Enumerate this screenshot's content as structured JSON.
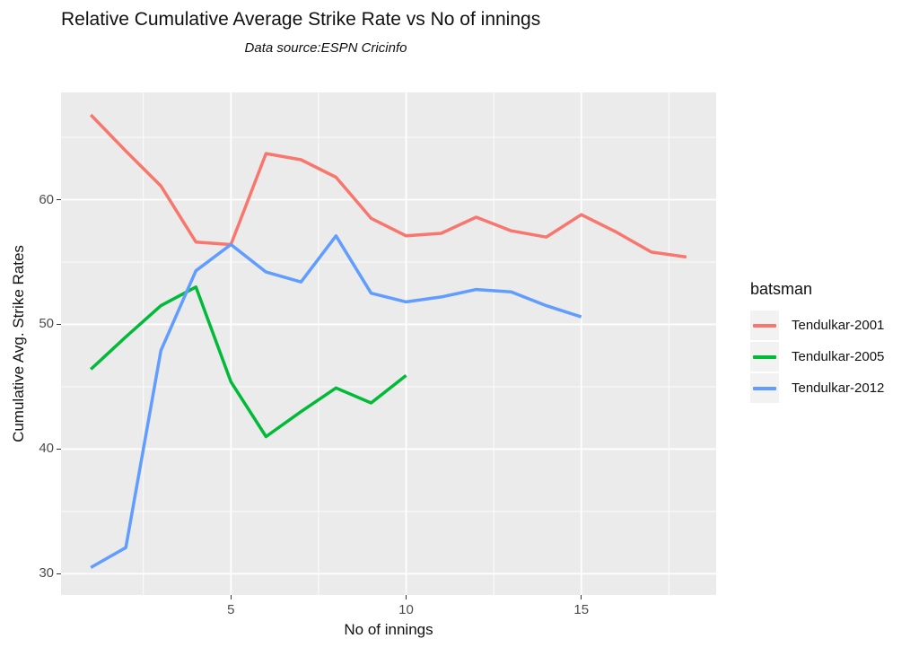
{
  "chart_data": {
    "type": "line",
    "title": "Relative Cumulative Average Strike Rate vs No of innings",
    "subtitle": "Data source:ESPN Cricinfo",
    "xlabel": "No of innings",
    "ylabel": "Cumulative Avg. Strike Rates",
    "xlim": [
      0.15,
      18.85
    ],
    "ylim": [
      28.3,
      68.6
    ],
    "x_ticks": [
      5,
      10,
      15
    ],
    "y_ticks": [
      30,
      40,
      50,
      60
    ],
    "x_minor_gridlines": [
      2.5,
      7.5,
      12.5,
      17.5
    ],
    "y_minor_gridlines": [
      35,
      45,
      55,
      65
    ],
    "grid": "on",
    "panel_background": "#EBEBEB",
    "gridline_color": "#FFFFFF",
    "legend_position": "right",
    "legend_title": "batsman",
    "series": [
      {
        "name": "Tendulkar-2001",
        "color": "#F8766D",
        "x": [
          1,
          2,
          3,
          4,
          5,
          6,
          7,
          8,
          9,
          10,
          11,
          12,
          13,
          14,
          15,
          16,
          17,
          18
        ],
        "y": [
          66.8,
          63.9,
          61.1,
          56.6,
          56.4,
          63.7,
          63.2,
          61.8,
          58.5,
          57.1,
          57.3,
          58.6,
          57.5,
          57.0,
          58.8,
          57.4,
          55.8,
          55.4
        ]
      },
      {
        "name": "Tendulkar-2005",
        "color": "#00BA38",
        "x": [
          1,
          2,
          3,
          4,
          5,
          6,
          7,
          8,
          9,
          10
        ],
        "y": [
          46.4,
          49.0,
          51.5,
          53.0,
          45.4,
          41.0,
          43.0,
          44.9,
          43.7,
          45.9
        ]
      },
      {
        "name": "Tendulkar-2012",
        "color": "#619CFF",
        "x": [
          1,
          2,
          3,
          4,
          5,
          6,
          7,
          8,
          9,
          10,
          11,
          12,
          13,
          14,
          15
        ],
        "y": [
          30.5,
          32.1,
          47.9,
          54.3,
          56.4,
          54.2,
          53.4,
          57.1,
          52.5,
          51.8,
          52.2,
          52.8,
          52.6,
          51.5,
          50.6
        ]
      }
    ]
  }
}
